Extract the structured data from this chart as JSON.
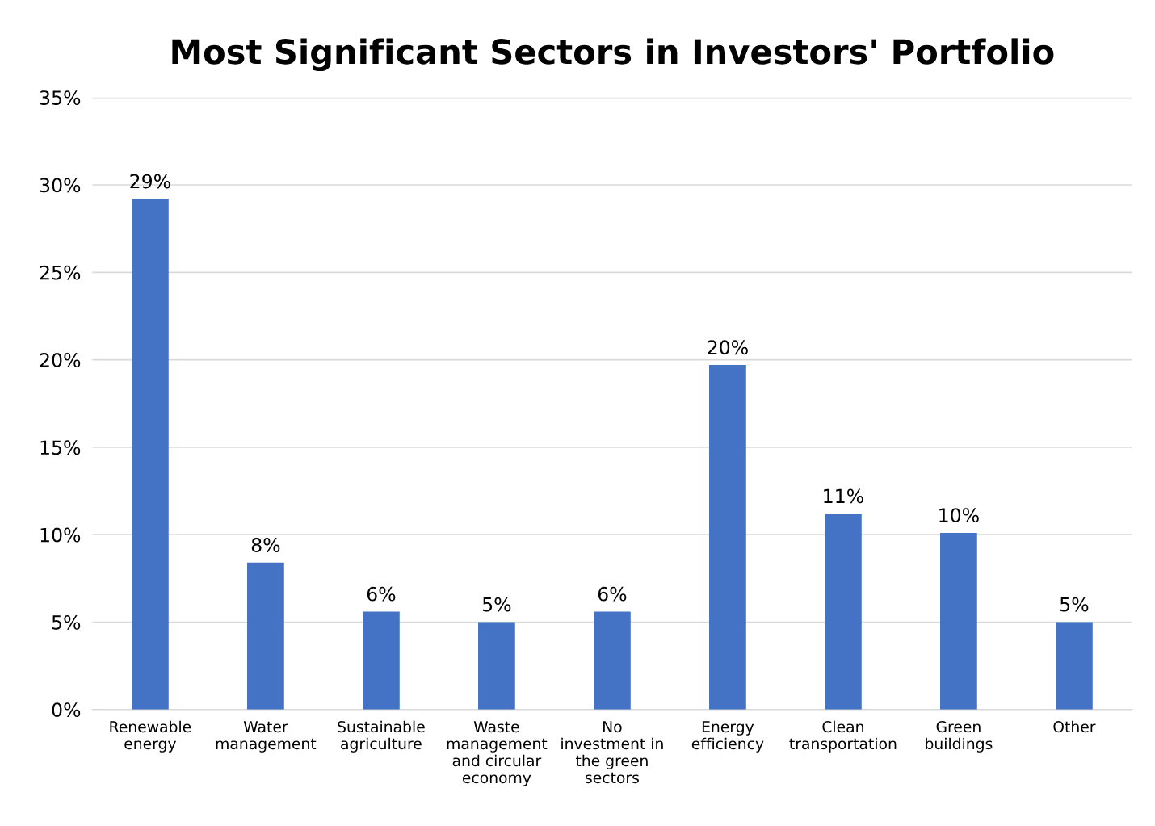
{
  "chart_data": {
    "type": "bar",
    "title": "Most Significant Sectors in Investors' Portfolio",
    "categories": [
      "Renewable\nenergy",
      "Water\nmanagement",
      "Sustainable\nagriculture",
      "Waste\nmanagement\nand circular\neconomy",
      "No\ninvestment in\nthe green\nsectors",
      "Energy\nefficiency",
      "Clean\ntransportation",
      "Green\nbuildings",
      "Other"
    ],
    "values": [
      29.2,
      8.4,
      5.6,
      5.0,
      5.6,
      19.7,
      11.2,
      10.1,
      5.0
    ],
    "value_labels": [
      "29%",
      "8%",
      "6%",
      "5%",
      "6%",
      "20%",
      "11%",
      "10%",
      "5%"
    ],
    "color": "#4472c4",
    "ylim": [
      0,
      35
    ],
    "yticks": [
      {
        "value": 0,
        "label": "0%"
      },
      {
        "value": 5,
        "label": "5%"
      },
      {
        "value": 10,
        "label": "10%"
      },
      {
        "value": 15,
        "label": "15%"
      },
      {
        "value": 20,
        "label": "20%"
      },
      {
        "value": 25,
        "label": "25%"
      },
      {
        "value": 30,
        "label": "30%"
      },
      {
        "value": 35,
        "label": "35%"
      }
    ],
    "grid": "y",
    "legend": false
  }
}
